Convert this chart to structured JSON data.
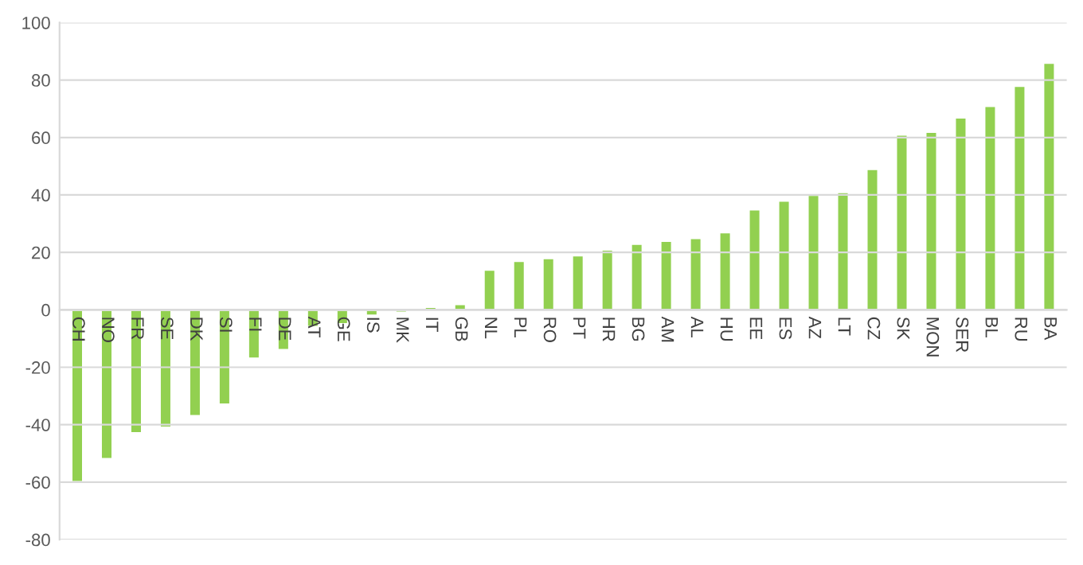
{
  "chart_data": {
    "type": "bar",
    "categories": [
      "CH",
      "NO",
      "FR",
      "SE",
      "DK",
      "SI",
      "FI",
      "DE",
      "AT",
      "GE",
      "IS",
      "MK",
      "IT",
      "GB",
      "NL",
      "PL",
      "RO",
      "PT",
      "HR",
      "BG",
      "AM",
      "AL",
      "HU",
      "EE",
      "ES",
      "AZ",
      "LT",
      "CZ",
      "SK",
      "MON",
      "SER",
      "BL",
      "RU",
      "BA"
    ],
    "values": [
      -60,
      -52,
      -43,
      -41,
      -37,
      -33,
      -17,
      -14,
      -6,
      -5,
      -2,
      -1,
      1,
      2,
      14,
      17,
      18,
      19,
      21,
      23,
      24,
      25,
      27,
      35,
      38,
      40,
      41,
      49,
      61,
      62,
      67,
      71,
      78,
      86
    ],
    "color": "#92d050",
    "ylim": [
      -80,
      100
    ],
    "yticks": [
      -80,
      -60,
      -40,
      -20,
      0,
      20,
      40,
      60,
      80,
      100
    ],
    "grid": "y",
    "legend": false
  }
}
